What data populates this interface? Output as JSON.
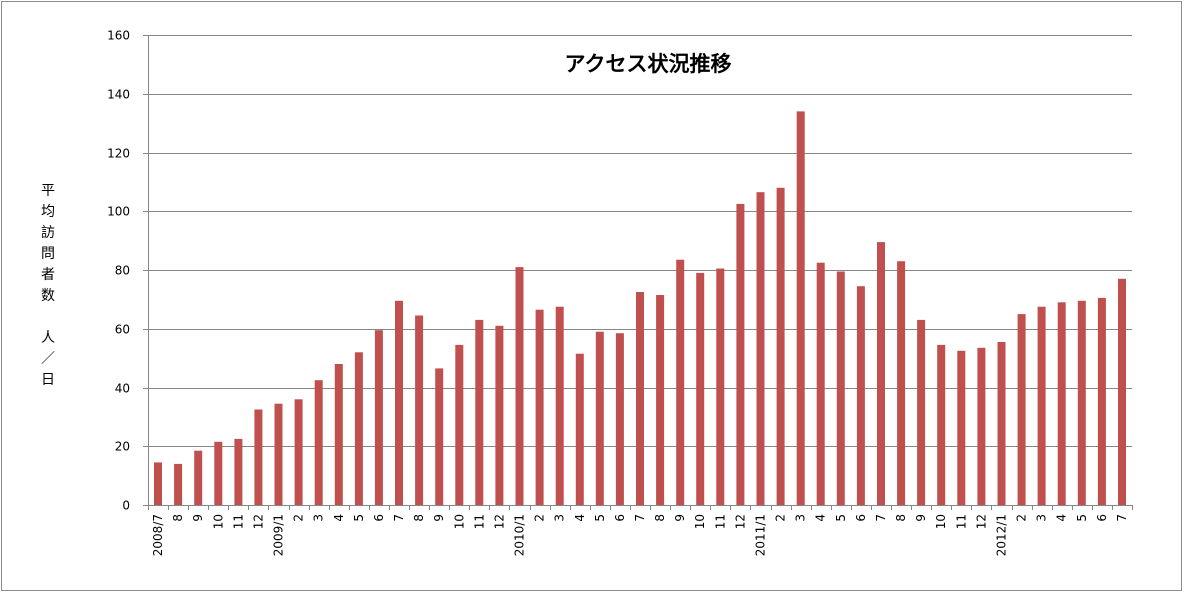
{
  "chart_data": {
    "type": "bar",
    "title": "アクセス状況推移",
    "ylabel": "平均訪問者数　人／日",
    "xlabel": "",
    "ylim": [
      0,
      160
    ],
    "yticks": [
      0,
      20,
      40,
      60,
      80,
      100,
      120,
      140,
      160
    ],
    "grid": true,
    "bar_color": "#c0504d",
    "categories": [
      "2008/7",
      "8",
      "9",
      "10",
      "11",
      "12",
      "2009/1",
      "2",
      "3",
      "4",
      "5",
      "6",
      "7",
      "8",
      "9",
      "10",
      "11",
      "12",
      "2010/1",
      "2",
      "3",
      "4",
      "5",
      "6",
      "7",
      "8",
      "9",
      "10",
      "11",
      "12",
      "2011/1",
      "2",
      "3",
      "4",
      "5",
      "6",
      "7",
      "8",
      "9",
      "10",
      "11",
      "12",
      "2012/1",
      "2",
      "3",
      "4",
      "5",
      "6",
      "7"
    ],
    "values": [
      14.5,
      14,
      18.5,
      21.5,
      22.5,
      32.5,
      34.5,
      36,
      42.5,
      48,
      52,
      59.5,
      69.5,
      64.5,
      46.5,
      54.5,
      63,
      61,
      81,
      66.5,
      67.5,
      51.5,
      59,
      58.5,
      72.5,
      71.5,
      83.5,
      79,
      80.5,
      102.5,
      106.5,
      108,
      134,
      82.5,
      79.5,
      74.5,
      89.5,
      83,
      63,
      54.5,
      52.5,
      53.5,
      55.5,
      65,
      67.5,
      69,
      69.5,
      70.5,
      77
    ]
  }
}
